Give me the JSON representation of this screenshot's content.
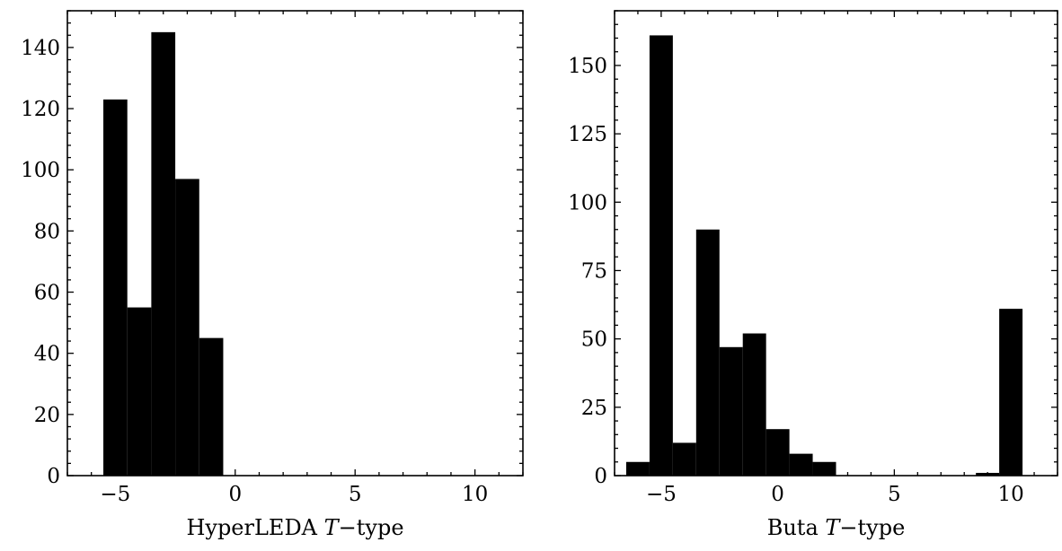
{
  "chart_data": [
    {
      "type": "bar",
      "subtype": "histogram",
      "xlabel": "HyperLEDA T−type",
      "xlabel_parts": {
        "prefix": "HyperLEDA ",
        "var": "T",
        "suffix": "−type"
      },
      "ylabel": "",
      "xlim": [
        -7,
        12
      ],
      "ylim": [
        0,
        152
      ],
      "xticks": [
        -5,
        0,
        5,
        10
      ],
      "xtick_labels": [
        "−5",
        "0",
        "5",
        "10"
      ],
      "yticks": [
        0,
        20,
        40,
        60,
        80,
        100,
        120,
        140
      ],
      "ytick_labels": [
        "0",
        "20",
        "40",
        "60",
        "80",
        "100",
        "120",
        "140"
      ],
      "bins": [
        {
          "x0": -5.5,
          "x1": -4.5,
          "value": 123
        },
        {
          "x0": -4.5,
          "x1": -3.5,
          "value": 55
        },
        {
          "x0": -3.5,
          "x1": -2.5,
          "value": 145
        },
        {
          "x0": -2.5,
          "x1": -1.5,
          "value": 97
        },
        {
          "x0": -1.5,
          "x1": -0.5,
          "value": 45
        }
      ],
      "color": "#000000",
      "grid": false
    },
    {
      "type": "bar",
      "subtype": "histogram",
      "xlabel": "Buta T−type",
      "xlabel_parts": {
        "prefix": "Buta ",
        "var": "T",
        "suffix": "−type"
      },
      "ylabel": "",
      "xlim": [
        -7,
        12
      ],
      "ylim": [
        0,
        170
      ],
      "xticks": [
        -5,
        0,
        5,
        10
      ],
      "xtick_labels": [
        "−5",
        "0",
        "5",
        "10"
      ],
      "yticks": [
        0,
        25,
        50,
        75,
        100,
        125,
        150
      ],
      "ytick_labels": [
        "0",
        "25",
        "50",
        "75",
        "100",
        "125",
        "150"
      ],
      "bins": [
        {
          "x0": -6.5,
          "x1": -5.5,
          "value": 5
        },
        {
          "x0": -5.5,
          "x1": -4.5,
          "value": 161
        },
        {
          "x0": -4.5,
          "x1": -3.5,
          "value": 12
        },
        {
          "x0": -3.5,
          "x1": -2.5,
          "value": 90
        },
        {
          "x0": -2.5,
          "x1": -1.5,
          "value": 47
        },
        {
          "x0": -1.5,
          "x1": -0.5,
          "value": 52
        },
        {
          "x0": -0.5,
          "x1": 0.5,
          "value": 17
        },
        {
          "x0": 0.5,
          "x1": 1.5,
          "value": 8
        },
        {
          "x0": 1.5,
          "x1": 2.5,
          "value": 5
        },
        {
          "x0": 8.5,
          "x1": 9.5,
          "value": 1
        },
        {
          "x0": 9.5,
          "x1": 10.5,
          "value": 61
        }
      ],
      "color": "#000000",
      "grid": false
    }
  ]
}
